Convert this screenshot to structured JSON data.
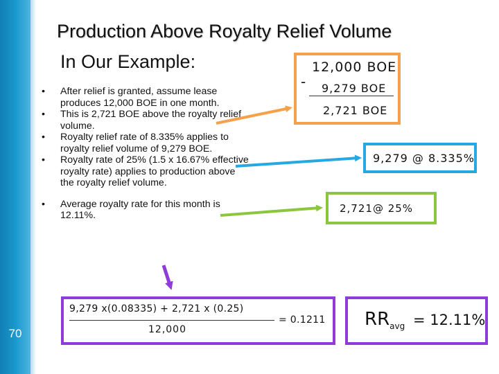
{
  "slide": {
    "title": "Production Above Royalty Relief Volume",
    "subtitle": "In Our Example:",
    "page_number": "70"
  },
  "bullets": [
    "After relief is granted, assume lease produces 12,000 BOE in one month.",
    "This is 2,721 BOE above the royalty relief volume.",
    "Royalty relief rate of 8.335% applies to royalty relief volume of 9,279 BOE.",
    "Royalty rate of 25% (1.5 x 16.67% effective royalty rate) applies to production above the royalty relief volume.",
    "Average royalty rate for this month is 12.11%."
  ],
  "handwriting": {
    "subtraction": {
      "top": "12,000 BOE",
      "minus": "-",
      "middle": "9,279 BOE",
      "result": "2,721 BOE"
    },
    "relief_rate": "9,279 @ 8.335%",
    "above_rate": "2,721@ 25%",
    "formula": {
      "numerator": "9,279 x(0.08335) + 2,721 x (0.25)",
      "denominator": "12,000",
      "equals": "= 0.1211"
    },
    "average": {
      "symbol": "RR",
      "subscript": "avg",
      "value": "= 12.11%"
    }
  },
  "colors": {
    "sidebar": "#1b9bd0",
    "orange": "#f5a04a",
    "blue": "#26a8e0",
    "green": "#8cc63f",
    "purple": "#8e3bd9"
  }
}
